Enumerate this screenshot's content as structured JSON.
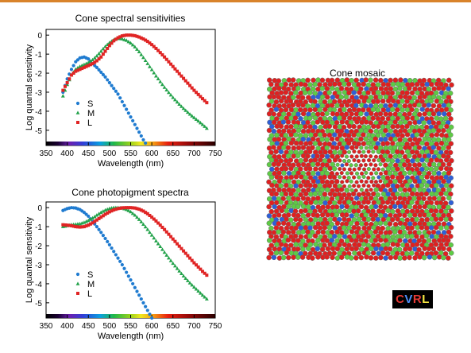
{
  "colors": {
    "accent": "#d9832b",
    "S": "#1f7bd0",
    "M": "#22a24a",
    "L": "#e02424",
    "mosaic_red": "#e02020",
    "mosaic_green": "#5ecb45",
    "mosaic_blue": "#2e5fd8"
  },
  "logo": {
    "letters": [
      "C",
      "V",
      "R",
      "L"
    ],
    "colors": [
      "#e53935",
      "#4f8ff7",
      "#e53935",
      "#f5e642"
    ]
  },
  "mosaic": {
    "title": "Cone mosaic",
    "cone_types": [
      "L",
      "M",
      "S"
    ],
    "proportions": {
      "L": 0.6,
      "M": 0.32,
      "S": 0.08
    }
  },
  "chart_data": [
    {
      "type": "scatter",
      "title": "Cone spectral sensitivities",
      "xlabel": "Wavelength (nm)",
      "ylabel": "Log quantal sensitivity",
      "xlim": [
        350,
        750
      ],
      "ylim": [
        -5.8,
        0.3
      ],
      "xticks": [
        "350",
        "400",
        "450",
        "500",
        "550",
        "600",
        "650",
        "700",
        "750"
      ],
      "yticks": [
        "0",
        "-1",
        "-2",
        "-3",
        "-4",
        "-5"
      ],
      "legend": {
        "position": "lower-left",
        "entries": [
          "S",
          "M",
          "L"
        ]
      },
      "series": [
        {
          "name": "S",
          "marker": "circle",
          "x": [
            390,
            400,
            410,
            420,
            430,
            440,
            450,
            460,
            470,
            480,
            490,
            500,
            510,
            520,
            530,
            540,
            550,
            560,
            570,
            580,
            590
          ],
          "y": [
            -3.0,
            -2.3,
            -1.8,
            -1.4,
            -1.2,
            -1.15,
            -1.25,
            -1.5,
            -1.7,
            -1.95,
            -2.2,
            -2.5,
            -2.8,
            -3.1,
            -3.5,
            -3.9,
            -4.3,
            -4.7,
            -5.1,
            -5.5,
            -5.85
          ]
        },
        {
          "name": "M",
          "marker": "triangle",
          "x": [
            390,
            400,
            410,
            420,
            430,
            440,
            450,
            460,
            470,
            480,
            490,
            500,
            510,
            520,
            530,
            540,
            550,
            560,
            570,
            580,
            590,
            600,
            610,
            620,
            630,
            640,
            650,
            660,
            670,
            680,
            690,
            700,
            710,
            720,
            730
          ],
          "y": [
            -3.2,
            -2.6,
            -2.1,
            -1.8,
            -1.65,
            -1.55,
            -1.45,
            -1.3,
            -1.1,
            -0.85,
            -0.6,
            -0.4,
            -0.25,
            -0.18,
            -0.2,
            -0.28,
            -0.42,
            -0.62,
            -0.88,
            -1.18,
            -1.5,
            -1.82,
            -2.15,
            -2.45,
            -2.75,
            -3.02,
            -3.28,
            -3.52,
            -3.75,
            -3.96,
            -4.16,
            -4.34,
            -4.52,
            -4.7,
            -4.9
          ]
        },
        {
          "name": "L",
          "marker": "square",
          "x": [
            390,
            400,
            410,
            420,
            430,
            440,
            450,
            460,
            470,
            480,
            490,
            500,
            510,
            520,
            530,
            540,
            550,
            560,
            570,
            580,
            590,
            600,
            610,
            620,
            630,
            640,
            650,
            660,
            670,
            680,
            690,
            700,
            710,
            720,
            730
          ],
          "y": [
            -2.9,
            -2.5,
            -2.1,
            -1.9,
            -1.8,
            -1.7,
            -1.6,
            -1.5,
            -1.35,
            -1.15,
            -0.85,
            -0.55,
            -0.3,
            -0.14,
            -0.04,
            0.0,
            0.0,
            -0.03,
            -0.1,
            -0.2,
            -0.33,
            -0.5,
            -0.7,
            -0.92,
            -1.15,
            -1.4,
            -1.65,
            -1.9,
            -2.15,
            -2.4,
            -2.65,
            -2.9,
            -3.12,
            -3.34,
            -3.55
          ]
        }
      ]
    },
    {
      "type": "scatter",
      "title": "Cone photopigment spectra",
      "xlabel": "Wavelength (nm)",
      "ylabel": "Log quantal sensitivity",
      "xlim": [
        350,
        750
      ],
      "ylim": [
        -5.8,
        0.3
      ],
      "xticks": [
        "350",
        "400",
        "450",
        "500",
        "550",
        "600",
        "650",
        "700",
        "750"
      ],
      "yticks": [
        "0",
        "-1",
        "-2",
        "-3",
        "-4",
        "-5"
      ],
      "legend": {
        "position": "lower-left",
        "entries": [
          "S",
          "M",
          "L"
        ]
      },
      "series": [
        {
          "name": "S",
          "marker": "circle",
          "x": [
            390,
            400,
            410,
            420,
            430,
            440,
            450,
            460,
            470,
            480,
            490,
            500,
            510,
            520,
            530,
            540,
            550,
            560,
            570,
            580,
            590,
            600
          ],
          "y": [
            -0.15,
            -0.05,
            0.0,
            -0.02,
            -0.1,
            -0.25,
            -0.45,
            -0.72,
            -1.0,
            -1.3,
            -1.62,
            -1.95,
            -2.3,
            -2.65,
            -3.0,
            -3.4,
            -3.8,
            -4.2,
            -4.6,
            -5.0,
            -5.4,
            -5.8
          ]
        },
        {
          "name": "M",
          "marker": "triangle",
          "x": [
            390,
            400,
            410,
            420,
            430,
            440,
            450,
            460,
            470,
            480,
            490,
            500,
            510,
            520,
            530,
            540,
            550,
            560,
            570,
            580,
            590,
            600,
            610,
            620,
            630,
            640,
            650,
            660,
            670,
            680,
            690,
            700,
            710,
            720,
            730
          ],
          "y": [
            -1.0,
            -0.95,
            -0.9,
            -0.88,
            -0.85,
            -0.78,
            -0.68,
            -0.55,
            -0.4,
            -0.25,
            -0.13,
            -0.05,
            0.0,
            0.0,
            -0.03,
            -0.1,
            -0.22,
            -0.4,
            -0.62,
            -0.88,
            -1.15,
            -1.45,
            -1.75,
            -2.05,
            -2.35,
            -2.65,
            -2.93,
            -3.2,
            -3.47,
            -3.72,
            -3.96,
            -4.18,
            -4.39,
            -4.6,
            -4.8
          ]
        },
        {
          "name": "L",
          "marker": "square",
          "x": [
            390,
            400,
            410,
            420,
            430,
            440,
            450,
            460,
            470,
            480,
            490,
            500,
            510,
            520,
            530,
            540,
            550,
            560,
            570,
            580,
            590,
            600,
            610,
            620,
            630,
            640,
            650,
            660,
            670,
            680,
            690,
            700,
            710,
            720,
            730
          ],
          "y": [
            -0.9,
            -0.92,
            -0.95,
            -1.0,
            -1.02,
            -1.0,
            -0.92,
            -0.8,
            -0.65,
            -0.5,
            -0.35,
            -0.22,
            -0.12,
            -0.05,
            -0.01,
            0.0,
            0.0,
            -0.02,
            -0.08,
            -0.18,
            -0.32,
            -0.5,
            -0.7,
            -0.92,
            -1.15,
            -1.4,
            -1.65,
            -1.9,
            -2.15,
            -2.4,
            -2.65,
            -2.9,
            -3.12,
            -3.35,
            -3.55
          ]
        }
      ]
    }
  ]
}
